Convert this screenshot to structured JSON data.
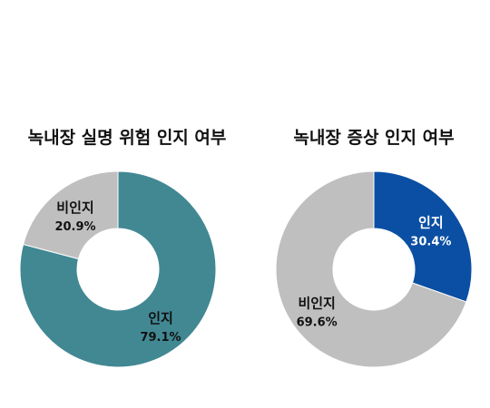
{
  "chart_data": [
    {
      "type": "pie",
      "title": "녹내장 실명 위험 인지 여부",
      "slices": [
        {
          "label": "인지",
          "value": 79.1,
          "value_text": "79.1%",
          "color": "#418893",
          "text_color": "#111111"
        },
        {
          "label": "비인지",
          "value": 20.9,
          "value_text": "20.9%",
          "color": "#bfbfbf",
          "text_color": "#111111"
        }
      ]
    },
    {
      "type": "pie",
      "title": "녹내장 증상 인지 여부",
      "slices": [
        {
          "label": "인지",
          "value": 30.4,
          "value_text": "30.4%",
          "color": "#0a4fa3",
          "text_color": "#ffffff"
        },
        {
          "label": "비인지",
          "value": 69.6,
          "value_text": "69.6%",
          "color": "#bfbfbf",
          "text_color": "#111111"
        }
      ]
    }
  ]
}
